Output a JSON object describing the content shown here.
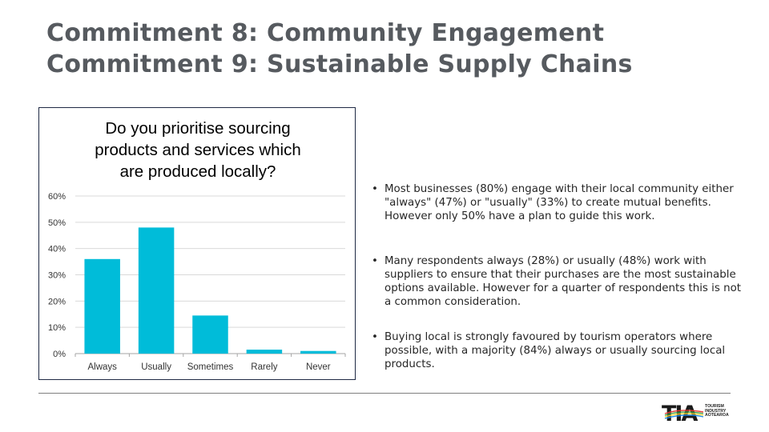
{
  "slide": {
    "title_line1": "Commitment 8: Community Engagement",
    "title_line2": "Commitment 9: Sustainable Supply Chains"
  },
  "chart_data": {
    "type": "bar",
    "title_lines": [
      "Do you prioritise sourcing",
      "products and services which",
      "are produced locally?"
    ],
    "categories": [
      "Always",
      "Usually",
      "Sometimes",
      "Rarely",
      "Never"
    ],
    "values": [
      36,
      48,
      14.5,
      1.5,
      1
    ],
    "ylim": [
      0,
      60
    ],
    "yticks": [
      0,
      10,
      20,
      30,
      40,
      50,
      60
    ],
    "ytick_labels": [
      "0%",
      "10%",
      "20%",
      "30%",
      "40%",
      "50%",
      "60%"
    ],
    "bar_color": "#00bcd9",
    "grid": true
  },
  "bullets": [
    "Most businesses (80%) engage with their local community either \"always\" (47%) or \"usually\" (33%) to create mutual benefits. However only 50% have a plan to guide this work.",
    "Many respondents always (28%)  or usually (48%) work with suppliers to ensure that their purchases are the most sustainable options available. However for a quarter of respondents this is not a common consideration.",
    "Buying local is strongly favoured by tourism operators where possible, with a majority (84%) always or usually sourcing local products."
  ],
  "bullet_symbol": "•",
  "logo": {
    "mark": "TIA",
    "text_lines": [
      "TOURISM",
      "INDUSTRY",
      "AOTEAROA"
    ]
  }
}
